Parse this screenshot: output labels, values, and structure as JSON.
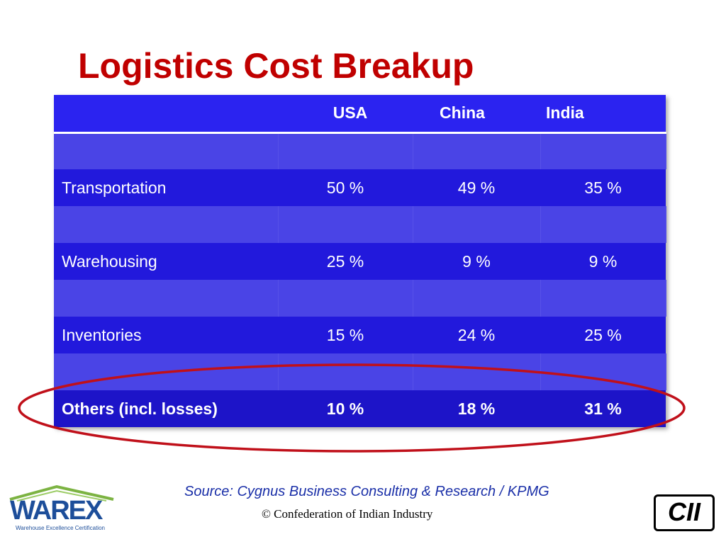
{
  "title": "Logistics Cost Breakup",
  "table": {
    "headers": [
      "",
      "USA",
      "China",
      "India"
    ],
    "rows": [
      {
        "label": "Transportation",
        "usa": "50 %",
        "china": "49 %",
        "india": "35 %"
      },
      {
        "label": "Warehousing",
        "usa": "25 %",
        "china": "9 %",
        "india": "9 %"
      },
      {
        "label": "Inventories",
        "usa": "15 %",
        "china": "24 %",
        "india": "25 %"
      },
      {
        "label": "Others (incl. losses)",
        "usa": "10 %",
        "china": "18 %",
        "india": "31 %"
      }
    ]
  },
  "footer": {
    "source": "Source: Cygnus Business Consulting & Research / KPMG",
    "copyright": "© Confederation of Indian Industry"
  },
  "logos": {
    "warex": "WAREX",
    "warex_tagline": "Warehouse Excellence Certification",
    "cii": "CII"
  },
  "colors": {
    "title": "#c00000",
    "table_header": "#2b23f0",
    "table_row": "#2219dc",
    "table_spacer": "#4a44e6",
    "highlight_ring": "#c0101a"
  }
}
